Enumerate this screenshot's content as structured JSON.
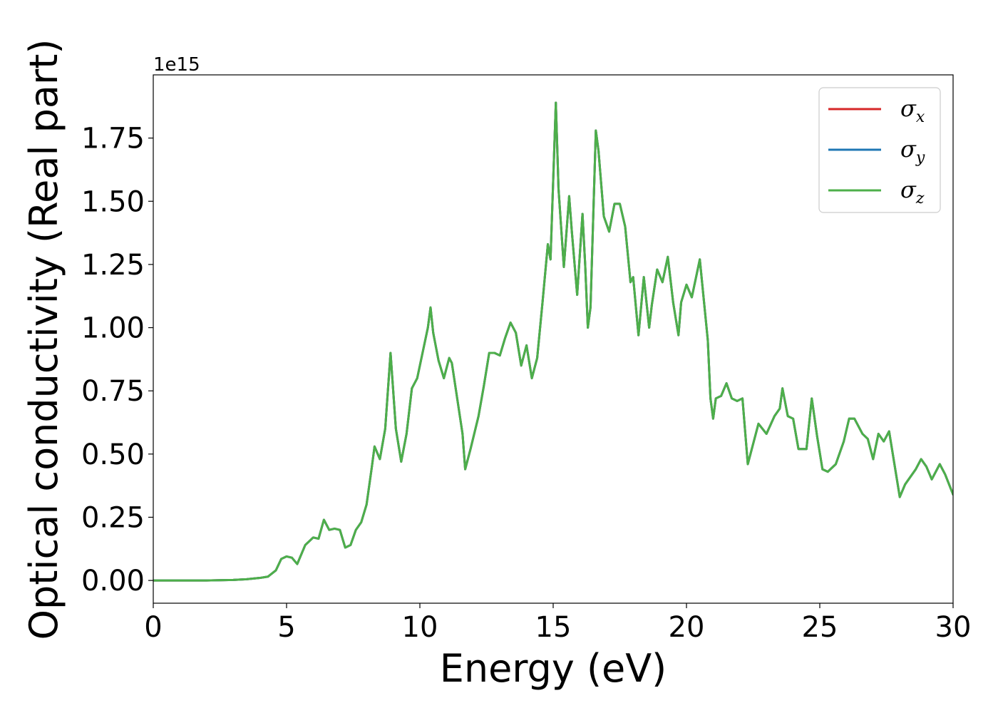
{
  "chart_data": {
    "type": "line",
    "title": "",
    "xlabel": "Energy (eV)",
    "ylabel": "Optical conductivity (Real part)",
    "y_offset_label": "1e15",
    "y_scale_factor": 1000000000000000.0,
    "xlim": [
      0,
      30
    ],
    "ylim": [
      -0.09,
      2.0
    ],
    "xticks": [
      0,
      5,
      10,
      15,
      20,
      25,
      30
    ],
    "xtick_labels": [
      "0",
      "5",
      "10",
      "15",
      "20",
      "25",
      "30"
    ],
    "yticks": [
      0.0,
      0.25,
      0.5,
      0.75,
      1.0,
      1.25,
      1.5,
      1.75
    ],
    "ytick_labels": [
      "0.00",
      "0.25",
      "0.50",
      "0.75",
      "1.00",
      "1.25",
      "1.50",
      "1.75"
    ],
    "grid": false,
    "legend_position": "top-right",
    "x": [
      0,
      1,
      2,
      3,
      3.5,
      4,
      4.3,
      4.6,
      4.8,
      5.0,
      5.2,
      5.4,
      5.7,
      6.0,
      6.2,
      6.4,
      6.6,
      6.8,
      7.0,
      7.2,
      7.4,
      7.6,
      7.8,
      8.0,
      8.2,
      8.3,
      8.5,
      8.7,
      8.9,
      9.1,
      9.3,
      9.5,
      9.7,
      9.9,
      10.1,
      10.3,
      10.4,
      10.5,
      10.7,
      10.9,
      11.1,
      11.2,
      11.4,
      11.6,
      11.7,
      11.9,
      12.2,
      12.4,
      12.6,
      12.8,
      13.0,
      13.2,
      13.4,
      13.6,
      13.8,
      14.0,
      14.2,
      14.4,
      14.6,
      14.8,
      14.9,
      15.1,
      15.2,
      15.4,
      15.6,
      15.7,
      15.9,
      16.1,
      16.2,
      16.3,
      16.4,
      16.6,
      16.7,
      16.9,
      17.1,
      17.3,
      17.5,
      17.7,
      17.9,
      18.0,
      18.2,
      18.4,
      18.6,
      18.7,
      18.9,
      19.1,
      19.3,
      19.5,
      19.7,
      19.8,
      20.0,
      20.2,
      20.5,
      20.8,
      20.9,
      21.0,
      21.1,
      21.3,
      21.5,
      21.7,
      21.9,
      22.1,
      22.3,
      22.4,
      22.7,
      23.0,
      23.3,
      23.5,
      23.6,
      23.8,
      24.0,
      24.2,
      24.5,
      24.7,
      24.9,
      25.1,
      25.3,
      25.6,
      25.9,
      26.1,
      26.3,
      26.6,
      26.8,
      27.0,
      27.2,
      27.4,
      27.6,
      27.8,
      28.0,
      28.2,
      28.6,
      28.8,
      29.0,
      29.2,
      29.5,
      29.7,
      30.0
    ],
    "series": [
      {
        "name": "x",
        "color": "#d62728",
        "values": [
          0,
          0,
          0,
          0.002,
          0.005,
          0.01,
          0.015,
          0.04,
          0.085,
          0.095,
          0.09,
          0.065,
          0.14,
          0.17,
          0.165,
          0.24,
          0.2,
          0.205,
          0.2,
          0.13,
          0.14,
          0.2,
          0.23,
          0.3,
          0.45,
          0.53,
          0.48,
          0.6,
          0.9,
          0.6,
          0.47,
          0.58,
          0.76,
          0.8,
          0.9,
          1.0,
          1.08,
          0.98,
          0.87,
          0.8,
          0.88,
          0.86,
          0.72,
          0.58,
          0.44,
          0.52,
          0.65,
          0.77,
          0.9,
          0.9,
          0.89,
          0.96,
          1.02,
          0.98,
          0.85,
          0.93,
          0.8,
          0.88,
          1.1,
          1.33,
          1.27,
          1.89,
          1.55,
          1.24,
          1.52,
          1.38,
          1.13,
          1.45,
          1.25,
          1.0,
          1.08,
          1.78,
          1.7,
          1.44,
          1.38,
          1.49,
          1.49,
          1.4,
          1.18,
          1.2,
          0.97,
          1.2,
          1.0,
          1.09,
          1.23,
          1.18,
          1.28,
          1.1,
          0.97,
          1.1,
          1.17,
          1.12,
          1.27,
          0.95,
          0.72,
          0.64,
          0.72,
          0.73,
          0.78,
          0.72,
          0.71,
          0.72,
          0.46,
          0.5,
          0.62,
          0.58,
          0.65,
          0.68,
          0.76,
          0.65,
          0.64,
          0.52,
          0.52,
          0.72,
          0.57,
          0.44,
          0.43,
          0.46,
          0.55,
          0.64,
          0.64,
          0.58,
          0.56,
          0.48,
          0.58,
          0.55,
          0.59,
          0.46,
          0.33,
          0.38,
          0.44,
          0.48,
          0.45,
          0.4,
          0.46,
          0.42,
          0.34
        ]
      },
      {
        "name": "y",
        "color": "#1f77b4",
        "values": [
          0,
          0,
          0,
          0.002,
          0.005,
          0.01,
          0.015,
          0.04,
          0.085,
          0.095,
          0.09,
          0.065,
          0.14,
          0.17,
          0.165,
          0.24,
          0.2,
          0.205,
          0.2,
          0.13,
          0.14,
          0.2,
          0.23,
          0.3,
          0.45,
          0.53,
          0.48,
          0.6,
          0.9,
          0.6,
          0.47,
          0.58,
          0.76,
          0.8,
          0.9,
          1.0,
          1.08,
          0.98,
          0.87,
          0.8,
          0.88,
          0.86,
          0.72,
          0.58,
          0.44,
          0.52,
          0.65,
          0.77,
          0.9,
          0.9,
          0.89,
          0.96,
          1.02,
          0.98,
          0.85,
          0.93,
          0.8,
          0.88,
          1.1,
          1.33,
          1.27,
          1.89,
          1.55,
          1.24,
          1.52,
          1.38,
          1.13,
          1.45,
          1.25,
          1.0,
          1.08,
          1.78,
          1.7,
          1.44,
          1.38,
          1.49,
          1.49,
          1.4,
          1.18,
          1.2,
          0.97,
          1.2,
          1.0,
          1.09,
          1.23,
          1.18,
          1.28,
          1.1,
          0.97,
          1.1,
          1.17,
          1.12,
          1.27,
          0.95,
          0.72,
          0.64,
          0.72,
          0.73,
          0.78,
          0.72,
          0.71,
          0.72,
          0.46,
          0.5,
          0.62,
          0.58,
          0.65,
          0.68,
          0.76,
          0.65,
          0.64,
          0.52,
          0.52,
          0.72,
          0.57,
          0.44,
          0.43,
          0.46,
          0.55,
          0.64,
          0.64,
          0.58,
          0.56,
          0.48,
          0.58,
          0.55,
          0.59,
          0.46,
          0.33,
          0.38,
          0.44,
          0.48,
          0.45,
          0.4,
          0.46,
          0.42,
          0.34
        ]
      },
      {
        "name": "z",
        "color": "#4daf4a",
        "values": [
          0,
          0,
          0,
          0.002,
          0.005,
          0.01,
          0.015,
          0.04,
          0.085,
          0.095,
          0.09,
          0.065,
          0.14,
          0.17,
          0.165,
          0.24,
          0.2,
          0.205,
          0.2,
          0.13,
          0.14,
          0.2,
          0.23,
          0.3,
          0.45,
          0.53,
          0.48,
          0.6,
          0.9,
          0.6,
          0.47,
          0.58,
          0.76,
          0.8,
          0.9,
          1.0,
          1.08,
          0.98,
          0.87,
          0.8,
          0.88,
          0.86,
          0.72,
          0.58,
          0.44,
          0.52,
          0.65,
          0.77,
          0.9,
          0.9,
          0.89,
          0.96,
          1.02,
          0.98,
          0.85,
          0.93,
          0.8,
          0.88,
          1.1,
          1.33,
          1.27,
          1.89,
          1.55,
          1.24,
          1.52,
          1.38,
          1.13,
          1.45,
          1.25,
          1.0,
          1.08,
          1.78,
          1.7,
          1.44,
          1.38,
          1.49,
          1.49,
          1.4,
          1.18,
          1.2,
          0.97,
          1.2,
          1.0,
          1.09,
          1.23,
          1.18,
          1.28,
          1.1,
          0.97,
          1.1,
          1.17,
          1.12,
          1.27,
          0.95,
          0.72,
          0.64,
          0.72,
          0.73,
          0.78,
          0.72,
          0.71,
          0.72,
          0.46,
          0.5,
          0.62,
          0.58,
          0.65,
          0.68,
          0.76,
          0.65,
          0.64,
          0.52,
          0.52,
          0.72,
          0.57,
          0.44,
          0.43,
          0.46,
          0.55,
          0.64,
          0.64,
          0.58,
          0.56,
          0.48,
          0.58,
          0.55,
          0.59,
          0.46,
          0.33,
          0.38,
          0.44,
          0.48,
          0.45,
          0.4,
          0.46,
          0.42,
          0.34
        ]
      }
    ]
  },
  "legend": {
    "symbol": "σ",
    "entries": [
      "x",
      "y",
      "z"
    ]
  }
}
